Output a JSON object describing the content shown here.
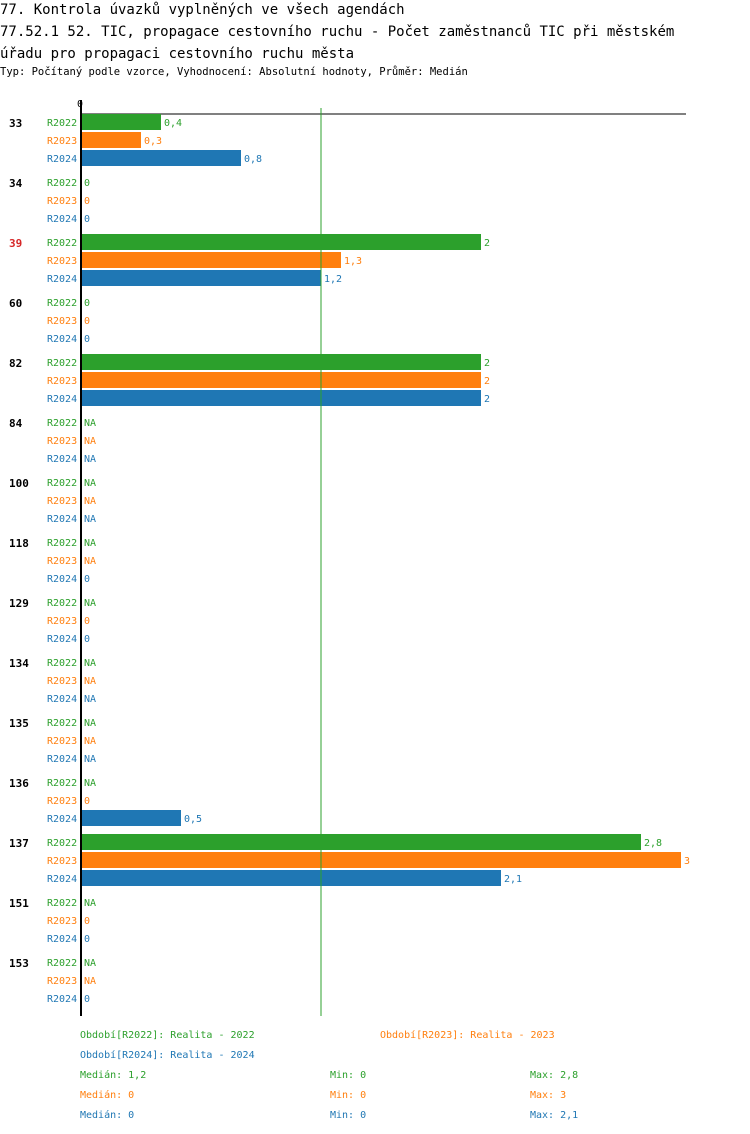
{
  "titles": {
    "line1": "77. Kontrola úvazků vyplněných ve všech agendách",
    "line2": "77.52.1 52. TIC, propagace cestovního ruchu - Počet zaměstnanců TIC při městském",
    "line3": "úřadu pro propagaci cestovního ruchu města",
    "subtitle": "Typ: Počítaný podle vzorce, Vyhodnocení: Absolutní hodnoty, Průměr: Medián"
  },
  "colors": {
    "R2022": "#2ca02c",
    "R2023": "#ff7f0e",
    "R2024": "#1f77b4",
    "highlight": "#d62728",
    "median_line": "#2ca02c"
  },
  "chart_data": {
    "type": "bar",
    "orientation": "horizontal",
    "axis_zero_label": "0",
    "xlim": [
      0,
      3
    ],
    "median_marker": 1.2,
    "series_names": [
      "R2022",
      "R2023",
      "R2024"
    ],
    "groups": [
      {
        "id": "33",
        "highlight": false,
        "values": [
          0.4,
          0.3,
          0.8
        ],
        "labels": [
          "0,4",
          "0,3",
          "0,8"
        ]
      },
      {
        "id": "34",
        "highlight": false,
        "values": [
          0,
          0,
          0
        ],
        "labels": [
          "0",
          "0",
          "0"
        ]
      },
      {
        "id": "39",
        "highlight": true,
        "values": [
          2,
          1.3,
          1.2
        ],
        "labels": [
          "2",
          "1,3",
          "1,2"
        ]
      },
      {
        "id": "60",
        "highlight": false,
        "values": [
          0,
          0,
          0
        ],
        "labels": [
          "0",
          "0",
          "0"
        ]
      },
      {
        "id": "82",
        "highlight": false,
        "values": [
          2,
          2,
          2
        ],
        "labels": [
          "2",
          "2",
          "2"
        ]
      },
      {
        "id": "84",
        "highlight": false,
        "values": [
          null,
          null,
          null
        ],
        "labels": [
          "NA",
          "NA",
          "NA"
        ]
      },
      {
        "id": "100",
        "highlight": false,
        "values": [
          null,
          null,
          null
        ],
        "labels": [
          "NA",
          "NA",
          "NA"
        ]
      },
      {
        "id": "118",
        "highlight": false,
        "values": [
          null,
          null,
          0
        ],
        "labels": [
          "NA",
          "NA",
          "0"
        ]
      },
      {
        "id": "129",
        "highlight": false,
        "values": [
          null,
          0,
          0
        ],
        "labels": [
          "NA",
          "0",
          "0"
        ]
      },
      {
        "id": "134",
        "highlight": false,
        "values": [
          null,
          null,
          null
        ],
        "labels": [
          "NA",
          "NA",
          "NA"
        ]
      },
      {
        "id": "135",
        "highlight": false,
        "values": [
          null,
          null,
          null
        ],
        "labels": [
          "NA",
          "NA",
          "NA"
        ]
      },
      {
        "id": "136",
        "highlight": false,
        "values": [
          null,
          0,
          0.5
        ],
        "labels": [
          "NA",
          "0",
          "0,5"
        ]
      },
      {
        "id": "137",
        "highlight": false,
        "values": [
          2.8,
          3,
          2.1
        ],
        "labels": [
          "2,8",
          "3",
          "2,1"
        ]
      },
      {
        "id": "151",
        "highlight": false,
        "values": [
          null,
          0,
          0
        ],
        "labels": [
          "NA",
          "0",
          "0"
        ]
      },
      {
        "id": "153",
        "highlight": false,
        "values": [
          null,
          null,
          0
        ],
        "labels": [
          "NA",
          "NA",
          "0"
        ]
      }
    ]
  },
  "legend": {
    "r2022": "Období[R2022]: Realita - 2022",
    "r2023": "Období[R2023]: Realita - 2023",
    "r2024": "Období[R2024]: Realita - 2024"
  },
  "stats": [
    {
      "median": "Medián: 1,2",
      "min": "Min: 0",
      "max": "Max: 2,8"
    },
    {
      "median": "Medián: 0",
      "min": "Min: 0",
      "max": "Max: 3"
    },
    {
      "median": "Medián: 0",
      "min": "Min: 0",
      "max": "Max: 2,1"
    }
  ]
}
